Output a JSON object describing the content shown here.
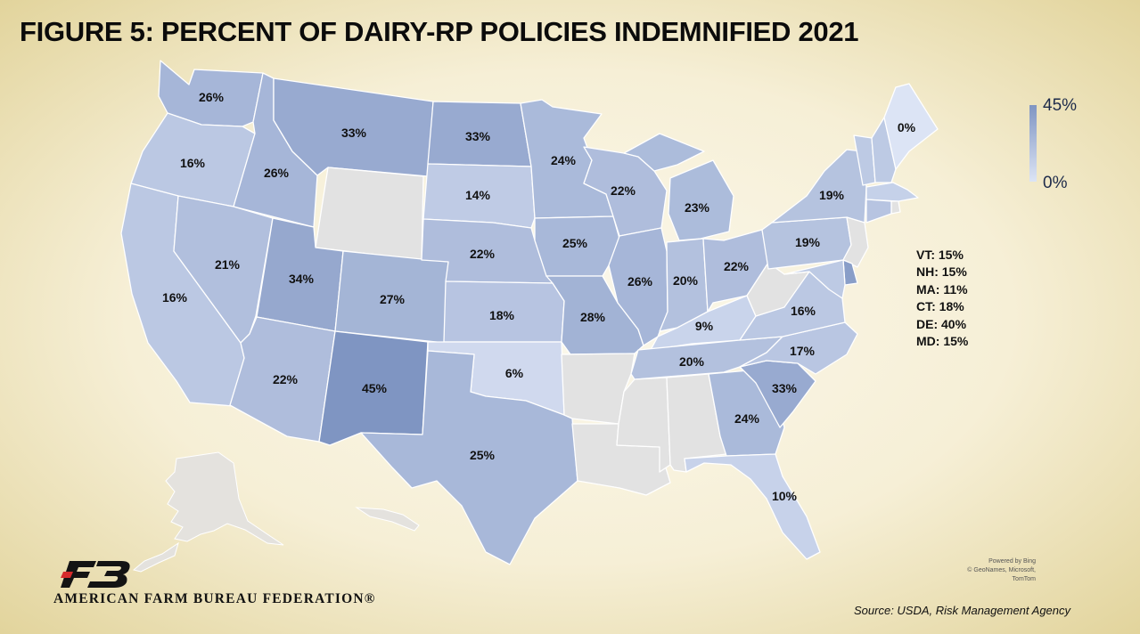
{
  "title": "FIGURE 5: PERCENT OF DAIRY-RP POLICIES INDEMNIFIED 2021",
  "legend": {
    "max_label": "45%",
    "min_label": "0%",
    "max_value": 45,
    "min_value": 0,
    "color_max": "#7f95c2",
    "color_min": "#dce4f5"
  },
  "nodata_color": "#e2e2e2",
  "states": [
    {
      "code": "WA",
      "label": "26%",
      "value": 26
    },
    {
      "code": "OR",
      "label": "16%",
      "value": 16
    },
    {
      "code": "CA",
      "label": "16%",
      "value": 16
    },
    {
      "code": "ID",
      "label": "26%",
      "value": 26
    },
    {
      "code": "NV",
      "label": "21%",
      "value": 21
    },
    {
      "code": "MT",
      "label": "33%",
      "value": 33
    },
    {
      "code": "WY",
      "label": "",
      "value": null
    },
    {
      "code": "UT",
      "label": "34%",
      "value": 34
    },
    {
      "code": "AZ",
      "label": "22%",
      "value": 22
    },
    {
      "code": "CO",
      "label": "27%",
      "value": 27
    },
    {
      "code": "NM",
      "label": "45%",
      "value": 45
    },
    {
      "code": "ND",
      "label": "33%",
      "value": 33
    },
    {
      "code": "SD",
      "label": "14%",
      "value": 14
    },
    {
      "code": "NE",
      "label": "22%",
      "value": 22
    },
    {
      "code": "KS",
      "label": "18%",
      "value": 18
    },
    {
      "code": "OK",
      "label": "6%",
      "value": 6
    },
    {
      "code": "TX",
      "label": "25%",
      "value": 25
    },
    {
      "code": "MN",
      "label": "24%",
      "value": 24
    },
    {
      "code": "IA",
      "label": "25%",
      "value": 25
    },
    {
      "code": "MO",
      "label": "28%",
      "value": 28
    },
    {
      "code": "AR",
      "label": "",
      "value": null
    },
    {
      "code": "LA",
      "label": "",
      "value": null
    },
    {
      "code": "WI",
      "label": "22%",
      "value": 22
    },
    {
      "code": "IL",
      "label": "26%",
      "value": 26
    },
    {
      "code": "MI",
      "label": "23%",
      "value": 23
    },
    {
      "code": "IN",
      "label": "20%",
      "value": 20
    },
    {
      "code": "OH",
      "label": "22%",
      "value": 22
    },
    {
      "code": "KY",
      "label": "9%",
      "value": 9
    },
    {
      "code": "TN",
      "label": "20%",
      "value": 20
    },
    {
      "code": "MS",
      "label": "",
      "value": null
    },
    {
      "code": "AL",
      "label": "",
      "value": null
    },
    {
      "code": "GA",
      "label": "24%",
      "value": 24
    },
    {
      "code": "FL",
      "label": "10%",
      "value": 10
    },
    {
      "code": "SC",
      "label": "33%",
      "value": 33
    },
    {
      "code": "NC",
      "label": "17%",
      "value": 17
    },
    {
      "code": "VA",
      "label": "16%",
      "value": 16
    },
    {
      "code": "WV",
      "label": "",
      "value": null
    },
    {
      "code": "PA",
      "label": "19%",
      "value": 19
    },
    {
      "code": "NY",
      "label": "19%",
      "value": 19
    },
    {
      "code": "NJ",
      "label": "",
      "value": null
    },
    {
      "code": "ME",
      "label": "0%",
      "value": 0
    },
    {
      "code": "VT",
      "label": "",
      "value": 15
    },
    {
      "code": "NH",
      "label": "",
      "value": 15
    },
    {
      "code": "MA",
      "label": "",
      "value": 11
    },
    {
      "code": "CT",
      "label": "",
      "value": 18
    },
    {
      "code": "RI",
      "label": "",
      "value": null
    },
    {
      "code": "DE",
      "label": "",
      "value": 40
    },
    {
      "code": "MD",
      "label": "",
      "value": 15
    }
  ],
  "small_states": [
    "VT: 15%",
    "NH: 15%",
    "MA: 11%",
    "CT: 18%",
    "DE: 40%",
    "MD: 15%"
  ],
  "attribution": {
    "line1": "Powered by Bing",
    "line2": "© GeoNames, Microsoft, TomTom"
  },
  "organization": "AMERICAN FARM BUREAU FEDERATION®",
  "logo_text": "FB",
  "source": "Source: USDA, Risk Management Agency"
}
